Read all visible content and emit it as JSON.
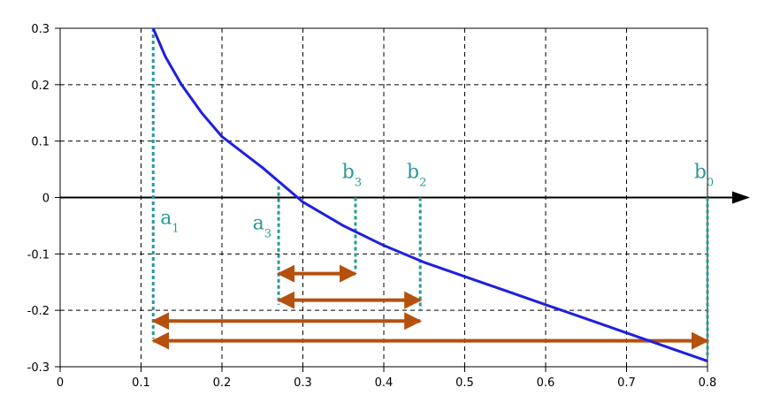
{
  "chart_data": {
    "type": "line",
    "x": [
      0.115,
      0.13,
      0.15,
      0.175,
      0.2,
      0.25,
      0.3,
      0.35,
      0.4,
      0.45,
      0.5,
      0.55,
      0.6,
      0.65,
      0.7,
      0.75,
      0.8
    ],
    "series": [
      {
        "color": "#1f1fe0",
        "values": [
          0.3,
          0.25,
          0.2,
          0.15,
          0.108,
          0.053,
          -0.008,
          -0.05,
          -0.085,
          -0.115,
          -0.14,
          -0.165,
          -0.19,
          -0.215,
          -0.24,
          -0.265,
          -0.29
        ]
      }
    ],
    "xlim": [
      0,
      0.8
    ],
    "ylim": [
      -0.3,
      0.3
    ],
    "xticks": [
      0,
      0.1,
      0.2,
      0.3,
      0.4,
      0.5,
      0.6,
      0.7,
      0.8
    ],
    "yticks": [
      -0.3,
      -0.2,
      -0.1,
      0,
      0.1,
      0.2,
      0.3
    ],
    "grid": true,
    "markers": [
      {
        "letter": "a",
        "sub": "1",
        "x": 0.115,
        "y_from": 0.3,
        "y_to": -0.25,
        "label_side": "right"
      },
      {
        "letter": "a",
        "sub": "3",
        "x": 0.27,
        "y_from": 0.02,
        "y_to": -0.19,
        "label_side": "left"
      },
      {
        "letter": "b",
        "sub": "3",
        "x": 0.365,
        "y_from": 0,
        "y_to": -0.13,
        "label_side": "top"
      },
      {
        "letter": "b",
        "sub": "2",
        "x": 0.445,
        "y_from": 0,
        "y_to": -0.2,
        "label_side": "top"
      },
      {
        "letter": "b",
        "sub": "0",
        "x": 0.8,
        "y_from": 0,
        "y_to": -0.28,
        "label_side": "top"
      }
    ],
    "marker_color": "#2a9a96",
    "intervals": [
      {
        "from": 0.27,
        "to": 0.365,
        "y": -0.135
      },
      {
        "from": 0.27,
        "to": 0.445,
        "y": -0.182
      },
      {
        "from": 0.115,
        "to": 0.445,
        "y": -0.219
      },
      {
        "from": 0.115,
        "to": 0.8,
        "y": -0.254
      }
    ],
    "interval_color": "#b5500e"
  }
}
